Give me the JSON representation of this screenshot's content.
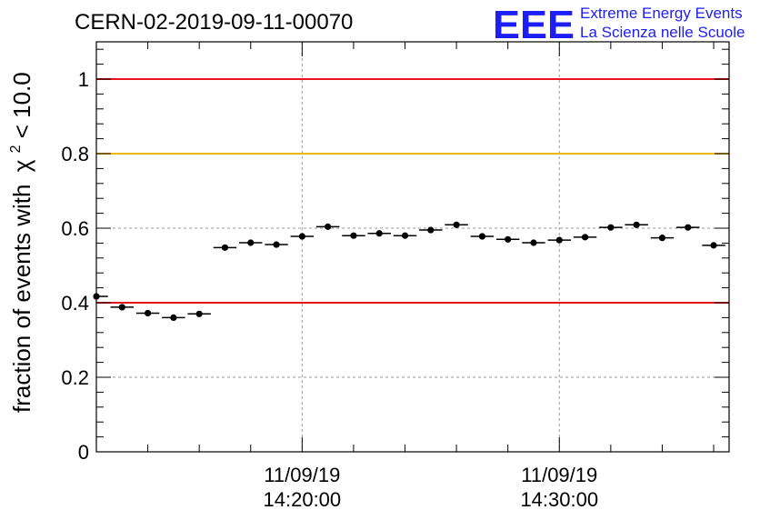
{
  "header": {
    "run_title": "CERN-02-2019-09-11-00070",
    "logo_text": "EEE",
    "logo_line1": "Extreme Energy Events",
    "logo_line2": "La Scienza nelle Scuole"
  },
  "chart_data": {
    "type": "scatter",
    "title": "CERN-02-2019-09-11-00070",
    "ylabel_prefix": "fraction of events with",
    "ylabel_symbol": "χ",
    "ylabel_exp": "2",
    "ylabel_suffix": " < 10.0",
    "xlabel": "",
    "ylim": [
      0,
      1.1
    ],
    "yticks": [
      "0",
      "0.2",
      "0.4",
      "0.6",
      "0.8",
      "1"
    ],
    "ytick_values": [
      0,
      0.2,
      0.4,
      0.6,
      0.8,
      1.0
    ],
    "x_unit": "minutes since 14:12",
    "xlim": [
      0,
      24.6
    ],
    "xticks": [
      {
        "x": 8,
        "date": "11/09/19",
        "time": "14:20:00"
      },
      {
        "x": 18,
        "date": "11/09/19",
        "time": "14:30:00"
      }
    ],
    "grid": true,
    "reference_lines": [
      {
        "y": 1.0,
        "color": "#e8141b"
      },
      {
        "y": 0.8,
        "color": "#f5b800"
      },
      {
        "y": 0.4,
        "color": "#e8141b"
      }
    ],
    "series": [
      {
        "x": [
          0.0,
          1.0,
          2.0,
          3.0,
          4.0,
          5.0,
          6.0,
          7.0,
          8.0,
          9.0,
          10.0,
          11.0,
          12.0,
          13.0,
          14.0,
          15.0,
          16.0,
          17.0,
          18.0,
          19.0,
          20.0,
          21.0,
          22.0,
          23.0,
          24.0
        ],
        "values": [
          0.417,
          0.388,
          0.372,
          0.36,
          0.37,
          0.548,
          0.561,
          0.556,
          0.578,
          0.604,
          0.58,
          0.586,
          0.58,
          0.595,
          0.609,
          0.578,
          0.57,
          0.561,
          0.568,
          0.576,
          0.602,
          0.609,
          0.574,
          0.602,
          0.554
        ],
        "yerr": 0.008,
        "xerr": 0.45,
        "color": "#000000"
      }
    ]
  }
}
